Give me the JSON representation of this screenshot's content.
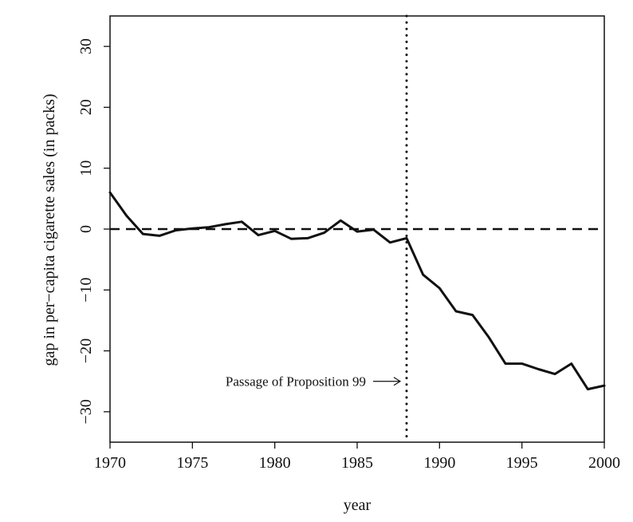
{
  "chart_data": {
    "type": "line",
    "title": "",
    "xlabel": "year",
    "ylabel": "gap in per−capita cigarette sales (in packs)",
    "xlim": [
      1970,
      2000
    ],
    "ylim": [
      -35,
      35
    ],
    "x_ticks": [
      1970,
      1975,
      1980,
      1985,
      1990,
      1995,
      2000
    ],
    "y_ticks": [
      -30,
      -20,
      -10,
      0,
      10,
      20,
      30
    ],
    "series": [
      {
        "name": "gap",
        "x": [
          1970,
          1971,
          1972,
          1973,
          1974,
          1975,
          1976,
          1977,
          1978,
          1979,
          1980,
          1981,
          1982,
          1983,
          1984,
          1985,
          1986,
          1987,
          1988,
          1989,
          1990,
          1991,
          1992,
          1993,
          1994,
          1995,
          1996,
          1997,
          1998,
          1999,
          2000
        ],
        "y": [
          6.0,
          2.2,
          -0.8,
          -1.1,
          -0.2,
          0.1,
          0.3,
          0.8,
          1.2,
          -1.0,
          -0.3,
          -1.6,
          -1.5,
          -0.6,
          1.4,
          -0.4,
          -0.1,
          -2.2,
          -1.5,
          -7.5,
          -9.7,
          -13.5,
          -14.1,
          -17.8,
          -22.1,
          -22.1,
          -23.0,
          -23.8,
          -22.1,
          -26.3,
          -25.7
        ]
      }
    ],
    "reference_lines": [
      {
        "name": "zero",
        "axis": "y",
        "value": 0,
        "style": "dashed"
      },
      {
        "name": "treatment",
        "axis": "x",
        "value": 1988,
        "style": "dotted"
      }
    ],
    "annotations": [
      {
        "text": "Passage of Proposition 99",
        "arrow_to_x": 1988,
        "y": -25
      }
    ],
    "grid": false
  }
}
